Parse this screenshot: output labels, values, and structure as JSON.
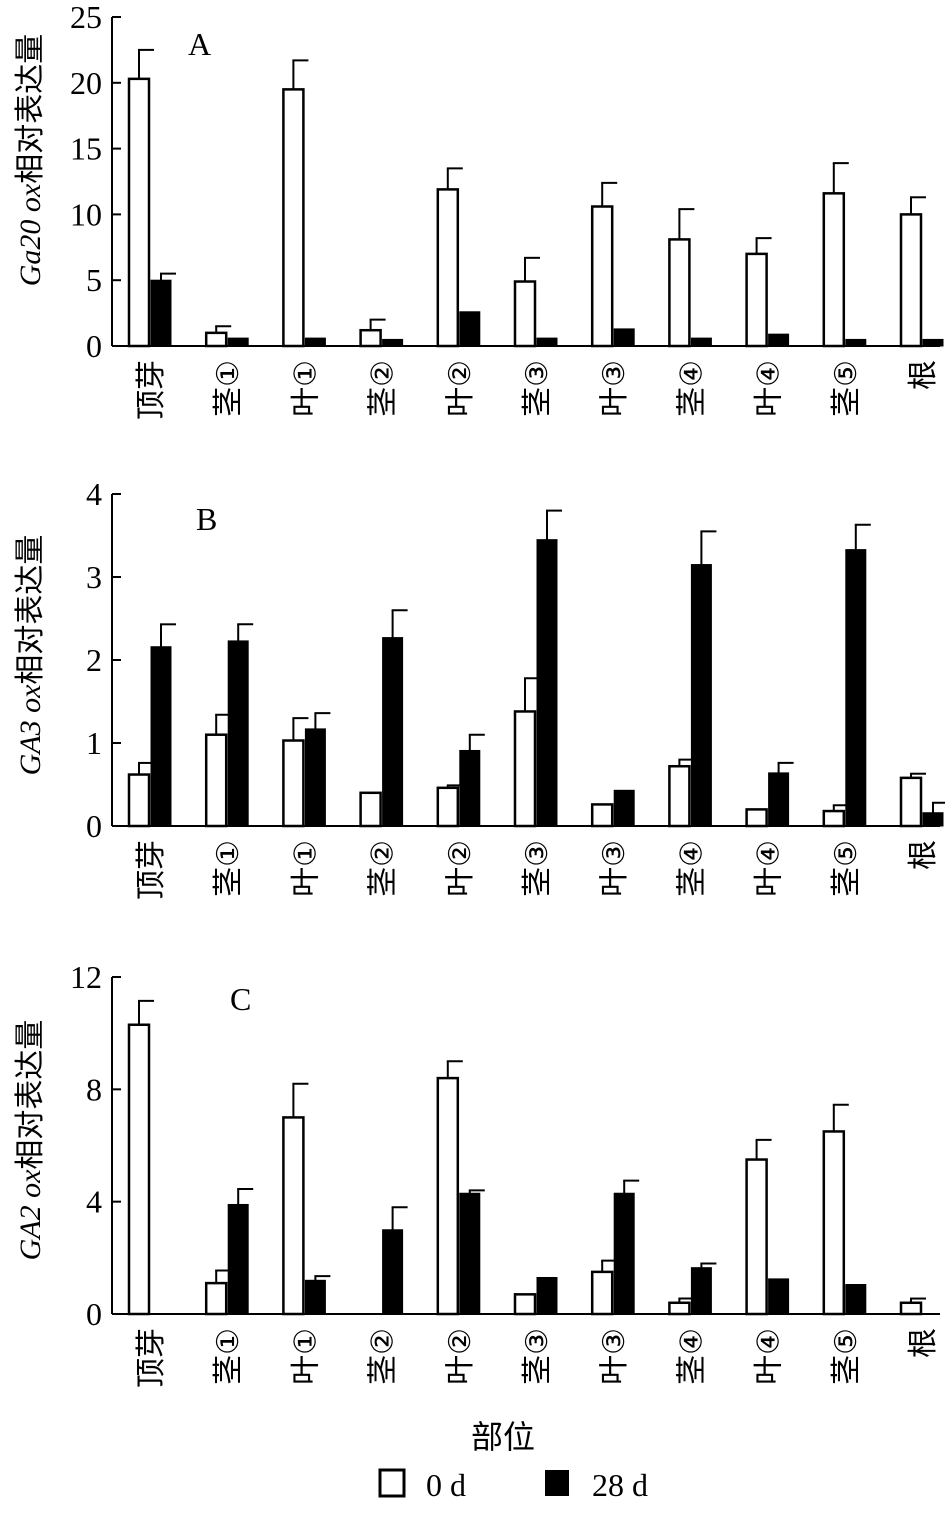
{
  "chart_data": [
    {
      "type": "bar",
      "panel_label": "A",
      "ylabel": {
        "italic": "Ga20 ox",
        "suffix": "相对表达量"
      },
      "categories": [
        "顶芽",
        "茎①",
        "叶①",
        "茎②",
        "叶②",
        "茎③",
        "叶③",
        "茎④",
        "叶④",
        "茎⑤",
        "根"
      ],
      "series": [
        {
          "name": "0 d",
          "values": [
            20.3,
            1.0,
            19.5,
            1.2,
            11.9,
            4.9,
            10.6,
            8.1,
            7.0,
            11.6,
            10.0
          ],
          "errors": [
            2.2,
            0.5,
            2.2,
            0.8,
            1.6,
            1.8,
            1.8,
            2.3,
            1.2,
            2.3,
            1.3
          ]
        },
        {
          "name": "28 d",
          "values": [
            5.0,
            0.6,
            0.6,
            0.5,
            2.6,
            0.6,
            1.3,
            0.6,
            0.9,
            0.5,
            0.5
          ],
          "errors": [
            0.5,
            0,
            0,
            0,
            0,
            0,
            0,
            0,
            0,
            0,
            0
          ]
        }
      ],
      "ylim": [
        0,
        25
      ],
      "yticks": [
        0,
        5,
        10,
        15,
        20,
        25
      ],
      "grid": false
    },
    {
      "type": "bar",
      "panel_label": "B",
      "ylabel": {
        "italic": "GA3 ox",
        "suffix": "相对表达量"
      },
      "categories": [
        "顶芽",
        "茎①",
        "叶①",
        "茎②",
        "叶②",
        "茎③",
        "叶③",
        "茎④",
        "叶④",
        "茎⑤",
        "根"
      ],
      "series": [
        {
          "name": "0 d",
          "values": [
            0.62,
            1.1,
            1.03,
            0.4,
            0.46,
            1.38,
            0.26,
            0.72,
            0.2,
            0.18,
            0.58
          ],
          "errors": [
            0.14,
            0.24,
            0.27,
            0.0,
            0.03,
            0.4,
            0.0,
            0.08,
            0.0,
            0.07,
            0.05
          ]
        },
        {
          "name": "28 d",
          "values": [
            2.16,
            2.23,
            1.17,
            2.27,
            0.91,
            3.45,
            0.43,
            3.15,
            0.64,
            3.33,
            0.16
          ],
          "errors": [
            0.27,
            0.2,
            0.19,
            0.33,
            0.19,
            0.35,
            0.0,
            0.4,
            0.12,
            0.3,
            0.12
          ]
        }
      ],
      "ylim": [
        0,
        4
      ],
      "yticks": [
        0,
        1,
        2,
        3,
        4
      ],
      "grid": false
    },
    {
      "type": "bar",
      "panel_label": "C",
      "ylabel": {
        "italic": "GA2 ox",
        "suffix": "相对表达量"
      },
      "categories": [
        "顶芽",
        "茎①",
        "叶①",
        "茎②",
        "叶②",
        "茎③",
        "叶③",
        "茎④",
        "叶④",
        "茎⑤",
        "根"
      ],
      "series": [
        {
          "name": "0 d",
          "values": [
            10.3,
            1.1,
            7.0,
            0.0,
            8.4,
            0.7,
            1.5,
            0.4,
            5.5,
            6.5,
            0.4
          ],
          "errors": [
            0.85,
            0.45,
            1.2,
            0.0,
            0.6,
            0.0,
            0.4,
            0.15,
            0.7,
            0.95,
            0.15
          ]
        },
        {
          "name": "28 d",
          "values": [
            0.0,
            3.9,
            1.2,
            3.0,
            4.3,
            1.3,
            4.3,
            1.65,
            1.25,
            1.05,
            0.0
          ],
          "errors": [
            0.0,
            0.55,
            0.15,
            0.8,
            0.1,
            0.0,
            0.45,
            0.15,
            0.0,
            0.0,
            0.0
          ]
        }
      ],
      "ylim": [
        0,
        12
      ],
      "yticks": [
        0,
        4,
        8,
        12
      ],
      "grid": false
    }
  ],
  "xlabel": "部位",
  "legend": [
    {
      "label": "0 d",
      "style": "open"
    },
    {
      "label": "28 d",
      "style": "filled"
    }
  ],
  "colors": {
    "open_fill": "#ffffff",
    "filled": "#000000",
    "stroke": "#000000"
  }
}
